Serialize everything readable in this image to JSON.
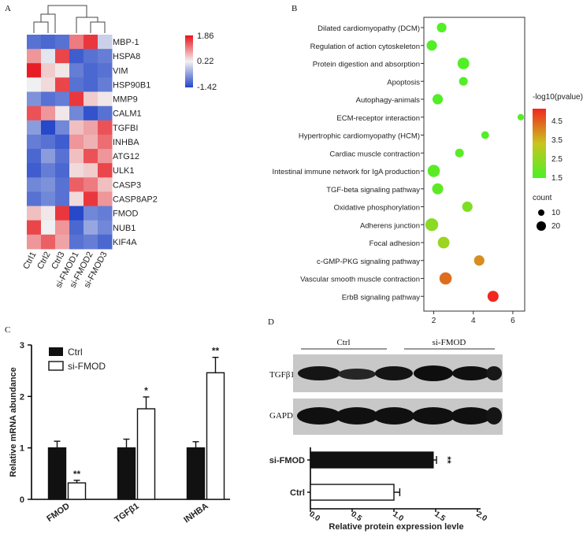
{
  "panels": {
    "a": "A",
    "b": "B",
    "c": "C",
    "d": "D"
  },
  "chart_data": [
    {
      "type": "heatmap",
      "panel": "A",
      "rows": [
        "MBP-1",
        "HSPA8",
        "VIM",
        "HSP90B1",
        "MMP9",
        "CALM1",
        "TGFBI",
        "INHBA",
        "ATG12",
        "ULK1",
        "CASP3",
        "CASP8AP2",
        "FMOD",
        "NUB1",
        "KIF4A"
      ],
      "columns": [
        "Ctrl1",
        "Ctrl2",
        "Ctrl3",
        "si-FMOD1",
        "si-FMOD2",
        "si-FMOD3"
      ],
      "values": [
        [
          -1.0,
          -1.1,
          -1.0,
          1.1,
          1.6,
          -0.1
        ],
        [
          0.9,
          0.1,
          1.5,
          -1.2,
          -1.0,
          -0.9
        ],
        [
          1.8,
          0.5,
          0.3,
          -0.9,
          -1.1,
          -1.0
        ],
        [
          0.2,
          0.4,
          1.5,
          -1.0,
          -1.1,
          -0.9
        ],
        [
          -0.7,
          -1.0,
          -0.9,
          1.6,
          0.5,
          0.3
        ],
        [
          1.4,
          0.9,
          0.3,
          -0.8,
          -1.3,
          -1.0
        ],
        [
          -0.6,
          -1.4,
          -0.8,
          0.6,
          0.8,
          1.4
        ],
        [
          -0.9,
          -1.0,
          -1.2,
          0.9,
          0.7,
          1.2
        ],
        [
          -1.1,
          -0.6,
          -1.0,
          0.6,
          1.4,
          0.9
        ],
        [
          -1.2,
          -0.9,
          -1.1,
          0.4,
          0.5,
          1.5
        ],
        [
          -0.8,
          -0.7,
          -1.0,
          1.3,
          1.1,
          0.6
        ],
        [
          -1.0,
          -0.8,
          -1.0,
          0.4,
          1.6,
          0.9
        ],
        [
          0.6,
          0.3,
          1.6,
          -1.4,
          -0.8,
          -0.9
        ],
        [
          1.5,
          0.2,
          0.9,
          -1.1,
          -0.5,
          -0.8
        ],
        [
          0.9,
          1.3,
          0.8,
          -1.0,
          -0.9,
          -1.1
        ]
      ],
      "scale": {
        "max": 1.86,
        "mid": 0.22,
        "min": -1.42
      },
      "scale_labels": [
        "1.86",
        "0.22",
        "-1.42"
      ],
      "colors": {
        "low": "#2346c8",
        "mid": "#f2f2f2",
        "high": "#e8141c"
      }
    },
    {
      "type": "scatter",
      "panel": "B",
      "categories": [
        "Dilated cardiomyopathy (DCM)",
        "Regulation of action cytoskeleton",
        "Protein digestion and absorption",
        "Apoptosis",
        "Autophagy-animals",
        "ECM-receptor interaction",
        "Hypertrophic cardiomyopathy (HCM)",
        "Cardiac muscle contraction",
        "Intestinal immune network for IgA production",
        "TGF-beta signaling pathway",
        "Oxidative phosphorylation",
        "Adherens junction",
        "Focal adhesion",
        "c-GMP-PKG signaling pathway",
        "Vascular smooth muscle contraction",
        "ErbB signaling pathway"
      ],
      "x": [
        2.4,
        1.9,
        3.5,
        3.5,
        2.2,
        6.4,
        4.6,
        3.3,
        2.0,
        2.2,
        3.7,
        1.9,
        2.5,
        4.3,
        2.6,
        5.0
      ],
      "count": [
        8,
        10,
        14,
        6,
        10,
        2,
        4,
        6,
        16,
        12,
        10,
        18,
        14,
        10,
        16,
        12
      ],
      "neg_log10_p": [
        1.6,
        1.6,
        1.6,
        1.6,
        1.6,
        1.6,
        1.6,
        1.7,
        1.7,
        1.8,
        2.3,
        2.5,
        2.8,
        4.2,
        4.6,
        5.5
      ],
      "xlim": [
        1.5,
        6.6
      ],
      "xticks": [
        "2",
        "4",
        "6"
      ],
      "color_legend": {
        "title": "-log10(pvalue)",
        "ticks": [
          "4.5",
          "3.5",
          "2.5",
          "1.5"
        ],
        "min": 1.5,
        "max": 5.5,
        "colors": {
          "low": "#4cf026",
          "mid": "#c9c41f",
          "high": "#f0281f"
        }
      },
      "size_legend": {
        "title": "count",
        "entries": [
          "10",
          "20"
        ],
        "values": [
          10,
          20
        ]
      }
    },
    {
      "type": "bar",
      "panel": "C",
      "categories": [
        "FMOD",
        "TGFβ1",
        "INHBA"
      ],
      "series": [
        {
          "name": "Ctrl",
          "values": [
            1.0,
            1.0,
            1.0
          ],
          "errors": [
            0.13,
            0.17,
            0.12
          ],
          "fill": "#111111"
        },
        {
          "name": "si-FMOD",
          "values": [
            0.32,
            1.76,
            2.46
          ],
          "errors": [
            0.05,
            0.23,
            0.3
          ],
          "fill": "#ffffff"
        }
      ],
      "significance": [
        "**",
        "*",
        "**"
      ],
      "ylabel": "Relative mRNA abundance",
      "ylim": [
        0,
        3
      ],
      "yticks": [
        "0",
        "1",
        "2",
        "3"
      ]
    },
    {
      "type": "bar",
      "panel": "D",
      "orientation": "horizontal",
      "blot": {
        "groups": [
          "Ctrl",
          "si-FMOD"
        ],
        "bands": [
          "TGFβ1",
          "GAPDH"
        ]
      },
      "categories": [
        "si-FMOD",
        "Ctrl"
      ],
      "values": [
        1.47,
        1.0
      ],
      "errors": [
        0.04,
        0.07
      ],
      "fills": [
        "#111111",
        "#ffffff"
      ],
      "significance": [
        "**",
        ""
      ],
      "xlabel": "Relative protein expression levle",
      "xlim": [
        0,
        2
      ],
      "xticks": [
        "0.0",
        "0.5",
        "1.0",
        "1.5",
        "2.0"
      ]
    }
  ]
}
